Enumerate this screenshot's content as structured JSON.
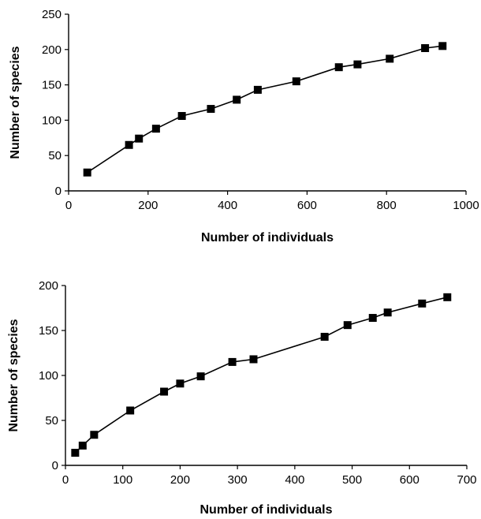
{
  "chart_data": [
    {
      "type": "line",
      "xlabel": "Number of individuals",
      "ylabel": "Number of species",
      "xlim": [
        0,
        1000
      ],
      "ylim": [
        0,
        250
      ],
      "xticks": [
        0,
        200,
        400,
        600,
        800,
        1000
      ],
      "yticks": [
        0,
        50,
        100,
        150,
        200,
        250
      ],
      "marker": "square",
      "color": "#000000",
      "grid": false,
      "legend": "none",
      "series": [
        {
          "x": [
            47,
            152,
            177,
            220,
            285,
            358,
            423,
            476,
            573,
            680,
            727,
            808,
            897,
            941
          ],
          "y": [
            26,
            65,
            74,
            88,
            106,
            116,
            129,
            143,
            155,
            175,
            179,
            187,
            202,
            205
          ]
        }
      ]
    },
    {
      "type": "line",
      "xlabel": "Number of individuals",
      "ylabel": "Number of species",
      "xlim": [
        0,
        700
      ],
      "ylim": [
        0,
        200
      ],
      "xticks": [
        0,
        100,
        200,
        300,
        400,
        500,
        600,
        700
      ],
      "yticks": [
        0,
        50,
        100,
        150,
        200
      ],
      "marker": "square",
      "color": "#000000",
      "grid": false,
      "legend": "none",
      "series": [
        {
          "x": [
            17,
            30,
            50,
            113,
            172,
            200,
            236,
            291,
            328,
            452,
            492,
            536,
            562,
            622,
            666
          ],
          "y": [
            14,
            22,
            34,
            61,
            82,
            91,
            99,
            115,
            118,
            143,
            156,
            164,
            170,
            180,
            187
          ]
        }
      ]
    }
  ]
}
